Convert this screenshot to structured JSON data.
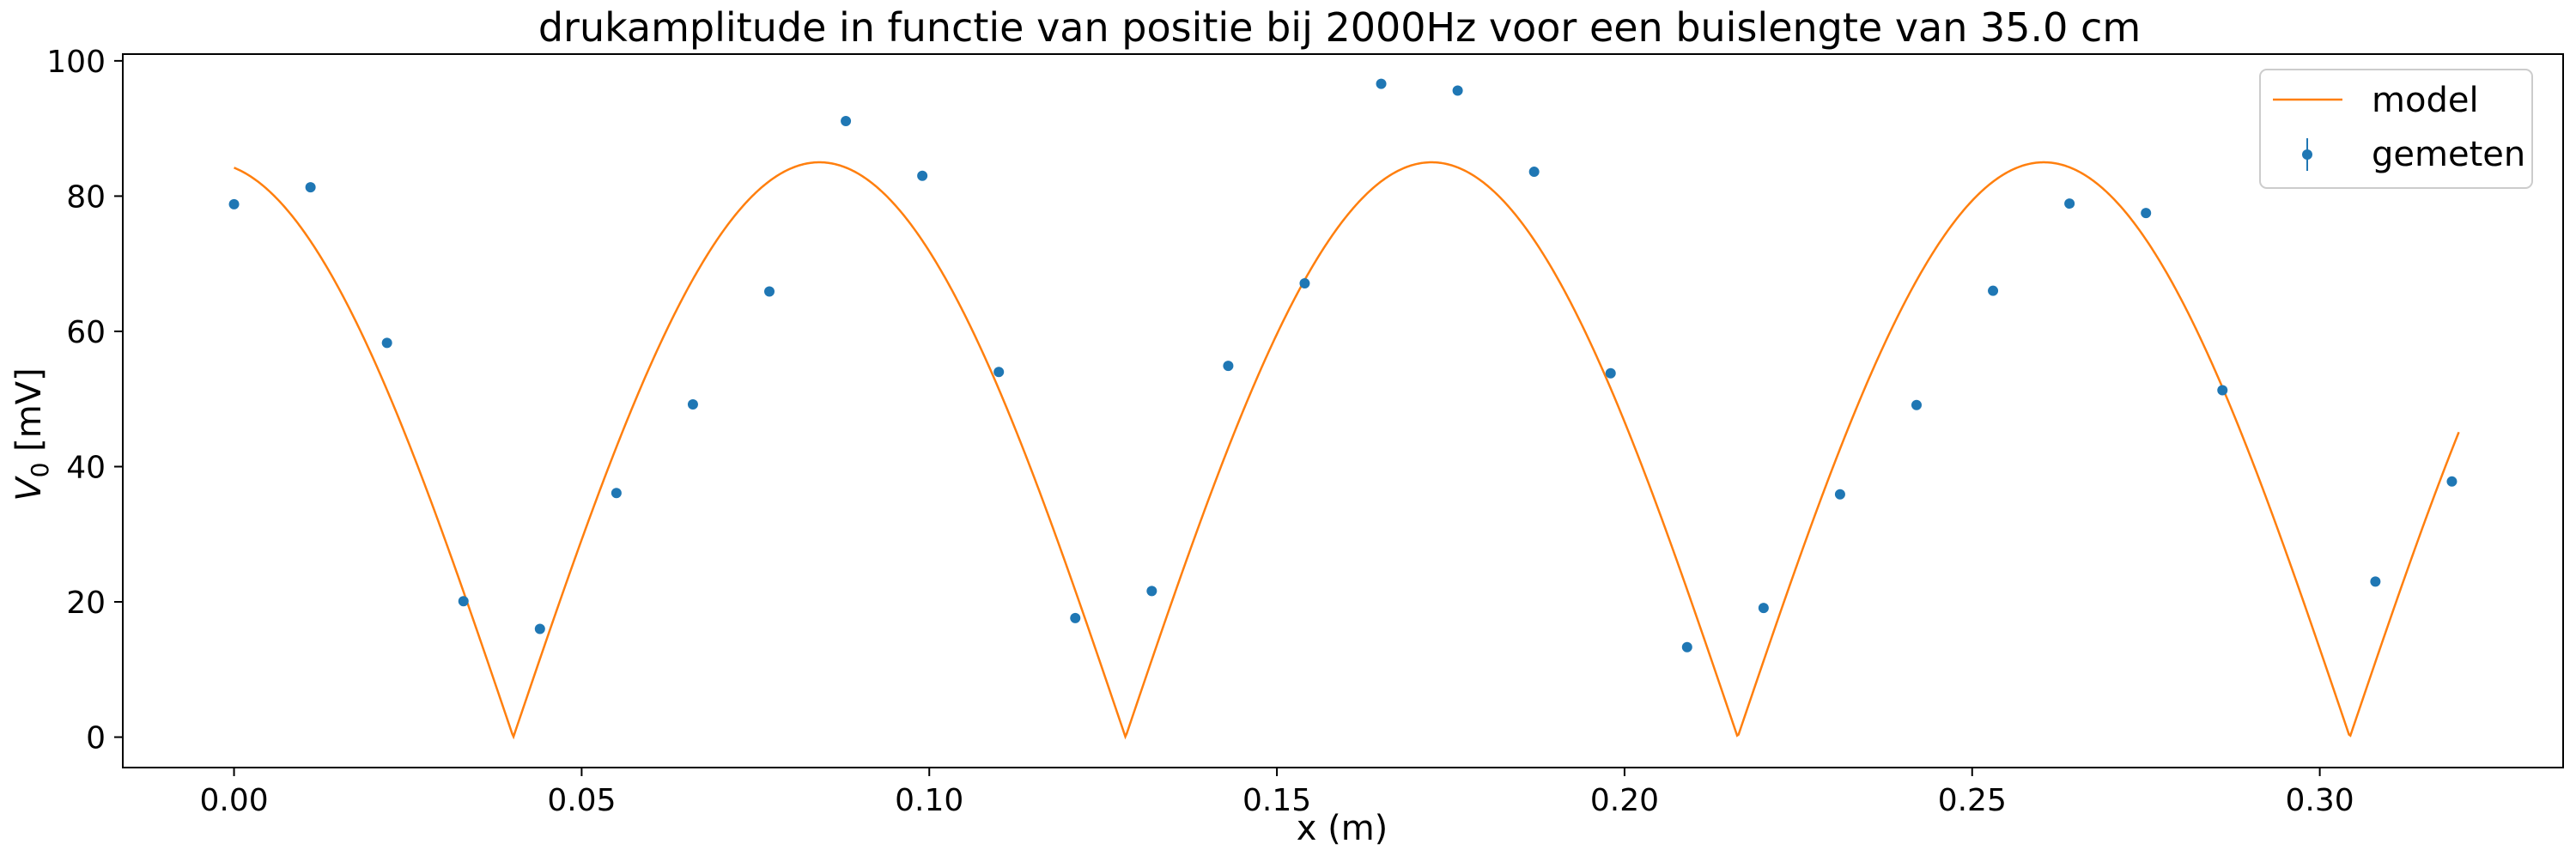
{
  "chart_data": {
    "type": "line",
    "title": "drukamplitude in functie van positie bij 2000Hz voor een buislengte van 35.0 cm",
    "xlabel": "x (m)",
    "ylabel_main": "V",
    "ylabel_sub": "0",
    "ylabel_unit": " [mV]",
    "xlim": [
      -0.016,
      0.335
    ],
    "ylim": [
      -4.5,
      101
    ],
    "x_ticks": [
      0.0,
      0.05,
      0.1,
      0.15,
      0.2,
      0.25,
      0.3
    ],
    "x_tick_labels": [
      "0.00",
      "0.05",
      "0.10",
      "0.15",
      "0.20",
      "0.25",
      "0.30"
    ],
    "y_ticks": [
      0,
      20,
      40,
      60,
      80,
      100
    ],
    "y_tick_labels": [
      "0",
      "20",
      "40",
      "60",
      "80",
      "100"
    ],
    "grid": false,
    "legend_position": "top-right",
    "series": [
      {
        "name": "model",
        "kind": "line",
        "color": "#ff7f0e",
        "function": "abs_cos",
        "amplitude": 85,
        "wavelength_m": 0.1761,
        "phase_offset_m": 0.0842,
        "x_range": [
          0.0,
          0.32
        ]
      },
      {
        "name": "gemeten",
        "kind": "errorbar-scatter",
        "color": "#1f77b4",
        "x": [
          0.0,
          0.011,
          0.022,
          0.033,
          0.044,
          0.055,
          0.066,
          0.077,
          0.088,
          0.099,
          0.11,
          0.121,
          0.132,
          0.143,
          0.154,
          0.165,
          0.176,
          0.187,
          0.198,
          0.209,
          0.22,
          0.231,
          0.242,
          0.253,
          0.264,
          0.275,
          0.286,
          0.308,
          0.319
        ],
        "y": [
          78.8,
          81.3,
          58.3,
          20.1,
          16.0,
          36.1,
          49.2,
          65.9,
          91.1,
          83.0,
          54.0,
          17.6,
          21.6,
          54.9,
          67.1,
          96.6,
          95.6,
          83.6,
          53.8,
          13.3,
          19.1,
          35.9,
          49.1,
          66.0,
          78.9,
          77.5,
          51.3,
          23.0,
          37.8
        ]
      }
    ]
  }
}
